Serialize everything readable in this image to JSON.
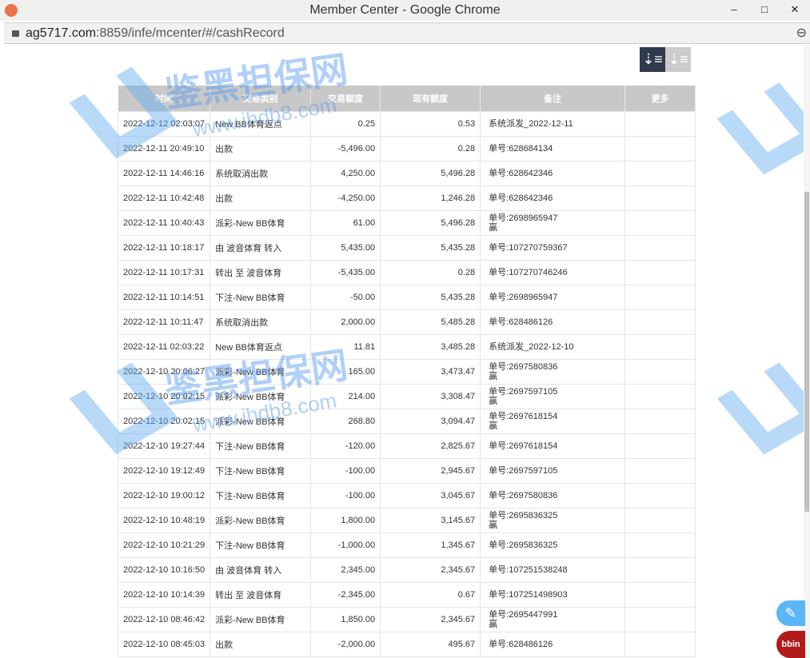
{
  "window": {
    "title": "Member Center - Google Chrome",
    "minimize": "–",
    "maximize": "□",
    "close": "✕"
  },
  "address": {
    "host": "ag5717.com",
    "path": ":8859/infe/mcenter/#/cashRecord"
  },
  "watermark": {
    "brand": "鉴黑担保网",
    "url": "www.ihdb8.com"
  },
  "sort": {
    "desc_icon": "sort-desc-icon",
    "asc_icon": "sort-asc-icon"
  },
  "table": {
    "headers": [
      "时间",
      "交易类别",
      "交易额度",
      "现有额度",
      "备注",
      "更多"
    ],
    "rows": [
      [
        "2022-12-12 02:03:07",
        "New BB体育返点",
        "0.25",
        "0.53",
        "系统派发_2022-12-11",
        ""
      ],
      [
        "2022-12-11 20:49:10",
        "出款",
        "-5,496.00",
        "0.28",
        "单号:628684134",
        ""
      ],
      [
        "2022-12-11 14:46:16",
        "系统取消出款",
        "4,250.00",
        "5,496.28",
        "单号:628642346",
        ""
      ],
      [
        "2022-12-11 10:42:48",
        "出款",
        "-4,250.00",
        "1,246.28",
        "单号:628642346",
        ""
      ],
      [
        "2022-12-11 10:40:43",
        "派彩-New BB体育",
        "61.00",
        "5,496.28",
        "单号:2698965947",
        "赢"
      ],
      [
        "2022-12-11 10:18:17",
        "由 波音体育 转入",
        "5,435.00",
        "5,435.28",
        "单号:107270759367",
        ""
      ],
      [
        "2022-12-11 10:17:31",
        "转出 至 波音体育",
        "-5,435.00",
        "0.28",
        "单号:107270746246",
        ""
      ],
      [
        "2022-12-11 10:14:51",
        "下注-New BB体育",
        "-50.00",
        "5,435.28",
        "单号:2698965947",
        ""
      ],
      [
        "2022-12-11 10:11:47",
        "系统取消出款",
        "2,000.00",
        "5,485.28",
        "单号:628486126",
        ""
      ],
      [
        "2022-12-11 02:03:22",
        "New BB体育返点",
        "11.81",
        "3,485.28",
        "系统派发_2022-12-10",
        ""
      ],
      [
        "2022-12-10 20:06:27",
        "派彩-New BB体育",
        "165.00",
        "3,473.47",
        "单号:2697580836",
        "赢"
      ],
      [
        "2022-12-10 20:02:15",
        "派彩-New BB体育",
        "214.00",
        "3,308.47",
        "单号:2697597105",
        "赢"
      ],
      [
        "2022-12-10 20:02:15",
        "派彩-New BB体育",
        "268.80",
        "3,094.47",
        "单号:2697618154",
        "赢"
      ],
      [
        "2022-12-10 19:27:44",
        "下注-New BB体育",
        "-120.00",
        "2,825.67",
        "单号:2697618154",
        ""
      ],
      [
        "2022-12-10 19:12:49",
        "下注-New BB体育",
        "-100.00",
        "2,945.67",
        "单号:2697597105",
        ""
      ],
      [
        "2022-12-10 19:00:12",
        "下注-New BB体育",
        "-100.00",
        "3,045.67",
        "单号:2697580836",
        ""
      ],
      [
        "2022-12-10 10:48:19",
        "派彩-New BB体育",
        "1,800.00",
        "3,145.67",
        "单号:2695836325",
        "赢"
      ],
      [
        "2022-12-10 10:21:29",
        "下注-New BB体育",
        "-1,000.00",
        "1,345.67",
        "单号:2695836325",
        ""
      ],
      [
        "2022-12-10 10:16:50",
        "由 波音体育 转入",
        "2,345.00",
        "2,345.67",
        "单号:107251538248",
        ""
      ],
      [
        "2022-12-10 10:14:39",
        "转出 至 波音体育",
        "-2,345.00",
        "0.67",
        "单号:107251498903",
        ""
      ],
      [
        "2022-12-10 08:46:42",
        "派彩-New BB体育",
        "1,850.00",
        "2,345.67",
        "单号:2695447991",
        "赢"
      ],
      [
        "2022-12-10 08:45:03",
        "出款",
        "-2,000.00",
        "495.67",
        "单号:628486126",
        ""
      ]
    ]
  },
  "floating": {
    "edit_icon": "edit-icon",
    "bbin_label": "bbin"
  }
}
